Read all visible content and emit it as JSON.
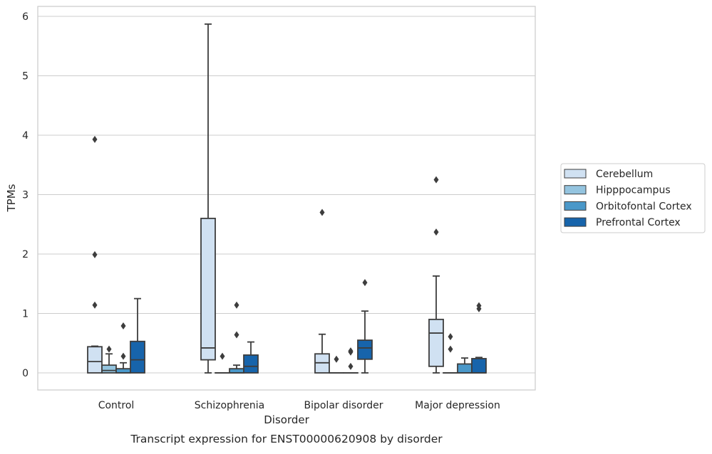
{
  "chart_data": {
    "type": "boxplot",
    "title": "Transcript expression for ENST00000620908 by disorder",
    "xlabel": "Disorder",
    "ylabel": "TPMs",
    "ylim": [
      -0.28,
      6.16
    ],
    "yticks": [
      0,
      1,
      2,
      3,
      4,
      5,
      6
    ],
    "grid": "horizontal",
    "legend_position": "right",
    "categories": [
      "Control",
      "Schizophrenia",
      "Bipolar disorder",
      "Major depression"
    ],
    "series": [
      {
        "name": "Cerebellum",
        "color": "#d0e1f2",
        "boxes": [
          {
            "min": 0.0,
            "q1": 0.0,
            "median": 0.19,
            "q3": 0.44,
            "max": 0.45,
            "outliers": [
              1.14,
              1.99,
              3.93
            ]
          },
          {
            "min": 0.0,
            "q1": 0.22,
            "median": 0.42,
            "q3": 2.6,
            "max": 5.87,
            "outliers": []
          },
          {
            "min": 0.0,
            "q1": 0.0,
            "median": 0.17,
            "q3": 0.32,
            "max": 0.65,
            "outliers": [
              2.7
            ]
          },
          {
            "min": 0.0,
            "q1": 0.11,
            "median": 0.67,
            "q3": 0.9,
            "max": 1.63,
            "outliers": [
              2.37,
              3.25
            ]
          }
        ]
      },
      {
        "name": "Hipppocampus",
        "color": "#94c4df",
        "boxes": [
          {
            "min": 0.0,
            "q1": 0.0,
            "median": 0.04,
            "q3": 0.13,
            "max": 0.32,
            "outliers": [
              0.4
            ]
          },
          {
            "min": 0.0,
            "q1": 0.0,
            "median": 0.0,
            "q3": 0.0,
            "max": 0.0,
            "outliers": [
              0.28
            ]
          },
          {
            "min": 0.0,
            "q1": 0.0,
            "median": 0.0,
            "q3": 0.0,
            "max": 0.0,
            "outliers": [
              0.23
            ]
          },
          {
            "min": 0.0,
            "q1": 0.0,
            "median": 0.0,
            "q3": 0.0,
            "max": 0.0,
            "outliers": [
              0.4,
              0.61
            ]
          }
        ]
      },
      {
        "name": "Orbitofontal Cortex",
        "color": "#4a98c9",
        "boxes": [
          {
            "min": 0.0,
            "q1": 0.0,
            "median": 0.0,
            "q3": 0.07,
            "max": 0.17,
            "outliers": [
              0.28,
              0.79
            ]
          },
          {
            "min": 0.0,
            "q1": 0.0,
            "median": 0.0,
            "q3": 0.07,
            "max": 0.13,
            "outliers": [
              0.64,
              1.14
            ]
          },
          {
            "min": 0.0,
            "q1": 0.0,
            "median": 0.0,
            "q3": 0.0,
            "max": 0.0,
            "outliers": [
              0.11,
              0.35,
              0.37
            ]
          },
          {
            "min": 0.0,
            "q1": 0.0,
            "median": 0.0,
            "q3": 0.15,
            "max": 0.25,
            "outliers": []
          }
        ]
      },
      {
        "name": "Prefrontal Cortex",
        "color": "#1764ab",
        "boxes": [
          {
            "min": 0.0,
            "q1": 0.0,
            "median": 0.22,
            "q3": 0.53,
            "max": 1.25,
            "outliers": []
          },
          {
            "min": 0.0,
            "q1": 0.0,
            "median": 0.11,
            "q3": 0.3,
            "max": 0.52,
            "outliers": []
          },
          {
            "min": 0.0,
            "q1": 0.23,
            "median": 0.42,
            "q3": 0.55,
            "max": 1.04,
            "outliers": [
              1.52
            ]
          },
          {
            "min": 0.0,
            "q1": 0.0,
            "median": 0.0,
            "q3": 0.24,
            "max": 0.26,
            "outliers": [
              1.08,
              1.13
            ]
          }
        ]
      }
    ]
  }
}
